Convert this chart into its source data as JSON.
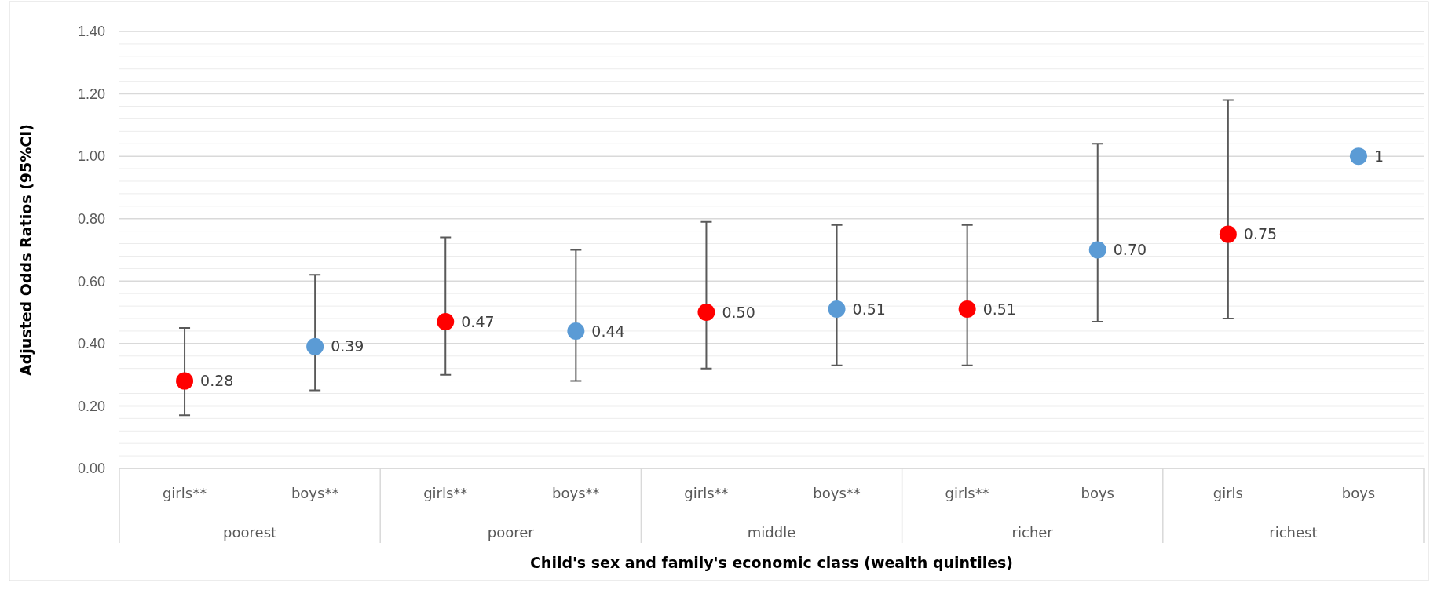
{
  "chart_data": {
    "type": "scatter",
    "xlabel": "Child's sex and family's economic class (wealth quintiles)",
    "ylabel": "Adjusted Odds Ratios (95%CI)",
    "categories": [
      "girls**",
      "boys**",
      "girls**",
      "boys**",
      "girls**",
      "boys**",
      "girls**",
      "boys",
      "girls",
      "boys"
    ],
    "annotations": [
      "poorest",
      "poorer",
      "middle",
      "richer",
      "richest"
    ],
    "series": [
      {
        "values": [
          0.28,
          0.39,
          0.47,
          0.44,
          0.5,
          0.51,
          0.51,
          0.7,
          0.75,
          1
        ],
        "colors": [
          "#ff0000",
          "#5b9bd5",
          "#ff0000",
          "#5b9bd5",
          "#ff0000",
          "#5b9bd5",
          "#ff0000",
          "#5b9bd5",
          "#ff0000",
          "#5b9bd5"
        ],
        "errors": [
          [
            0.17,
            0.45
          ],
          [
            0.25,
            0.62
          ],
          [
            0.3,
            0.74
          ],
          [
            0.28,
            0.7
          ],
          [
            0.32,
            0.79
          ],
          [
            0.33,
            0.78
          ],
          [
            0.33,
            0.78
          ],
          [
            0.47,
            1.04
          ],
          [
            0.48,
            1.18
          ],
          null
        ],
        "value_labels": [
          "0.28",
          "0.39",
          "0.47",
          "0.44",
          "0.50",
          "0.51",
          "0.51",
          "0.70",
          "0.75",
          "1"
        ]
      }
    ],
    "ylim": [
      0,
      1.4
    ],
    "yticks": [
      {
        "value": 0,
        "label": "0.00"
      },
      {
        "value": 0.04,
        "label": null
      },
      {
        "value": 0.08,
        "label": null
      },
      {
        "value": 0.12,
        "label": null
      },
      {
        "value": 0.16,
        "label": null
      },
      {
        "value": 0.2,
        "label": "0.20"
      },
      {
        "value": 0.24,
        "label": null
      },
      {
        "value": 0.28,
        "label": null
      },
      {
        "value": 0.32,
        "label": null
      },
      {
        "value": 0.36,
        "label": null
      },
      {
        "value": 0.4,
        "label": "0.40"
      },
      {
        "value": 0.44,
        "label": null
      },
      {
        "value": 0.48,
        "label": null
      },
      {
        "value": 0.52,
        "label": null
      },
      {
        "value": 0.56,
        "label": null
      },
      {
        "value": 0.6,
        "label": "0.60"
      },
      {
        "value": 0.64,
        "label": null
      },
      {
        "value": 0.68,
        "label": null
      },
      {
        "value": 0.72,
        "label": null
      },
      {
        "value": 0.76,
        "label": null
      },
      {
        "value": 0.8,
        "label": "0.80"
      },
      {
        "value": 0.84,
        "label": null
      },
      {
        "value": 0.88,
        "label": null
      },
      {
        "value": 0.92,
        "label": null
      },
      {
        "value": 0.96,
        "label": null
      },
      {
        "value": 1,
        "label": "1.00"
      },
      {
        "value": 1.04,
        "label": null
      },
      {
        "value": 1.08,
        "label": null
      },
      {
        "value": 1.12,
        "label": null
      },
      {
        "value": 1.16,
        "label": null
      },
      {
        "value": 1.2,
        "label": "1.20"
      },
      {
        "value": 1.24,
        "label": null
      },
      {
        "value": 1.28,
        "label": null
      },
      {
        "value": 1.32,
        "label": null
      },
      {
        "value": 1.36,
        "label": null
      },
      {
        "value": 1.4,
        "label": "1.40"
      }
    ],
    "grid": true,
    "marker": "circle"
  }
}
